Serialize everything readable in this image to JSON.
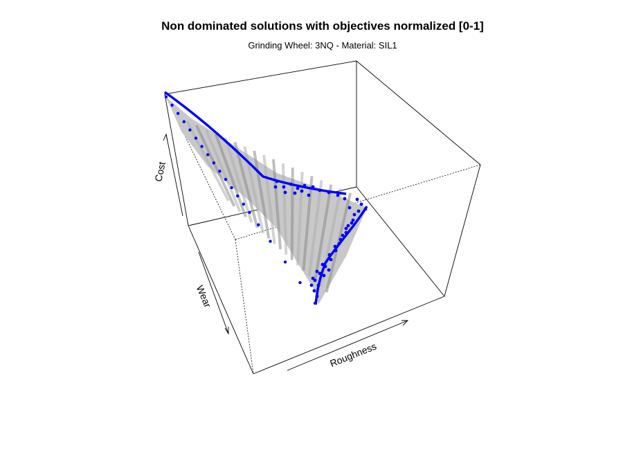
{
  "chart_data": {
    "type": "scatter",
    "title": "Non dominated solutions with objectives normalized [0-1]",
    "subtitle": "Grinding Wheel: 3NQ - Material: SIL1",
    "axes": {
      "x": "Roughness",
      "y": "Wear",
      "z": "Cost"
    },
    "xlim": [
      0,
      1
    ],
    "ylim": [
      0,
      1
    ],
    "zlim": [
      0,
      1
    ],
    "surface": {
      "fill": "#c8c8c8",
      "shade": "#8c8c8c"
    },
    "series": [
      {
        "color": "#0000ff",
        "points": [
          {
            "x": 0.0,
            "y": 1.0,
            "z": 1.0
          },
          {
            "x": 0.04,
            "y": 0.94,
            "z": 0.86
          },
          {
            "x": 0.08,
            "y": 0.88,
            "z": 0.74
          },
          {
            "x": 0.12,
            "y": 0.82,
            "z": 0.63
          },
          {
            "x": 0.16,
            "y": 0.76,
            "z": 0.54
          },
          {
            "x": 0.2,
            "y": 0.7,
            "z": 0.46
          },
          {
            "x": 0.24,
            "y": 0.64,
            "z": 0.39
          },
          {
            "x": 0.28,
            "y": 0.58,
            "z": 0.33
          },
          {
            "x": 0.32,
            "y": 0.52,
            "z": 0.28
          },
          {
            "x": 0.36,
            "y": 0.46,
            "z": 0.23
          },
          {
            "x": 0.4,
            "y": 0.4,
            "z": 0.19
          },
          {
            "x": 0.44,
            "y": 0.34,
            "z": 0.16
          },
          {
            "x": 0.48,
            "y": 0.28,
            "z": 0.13
          },
          {
            "x": 0.52,
            "y": 0.22,
            "z": 0.1
          },
          {
            "x": 0.56,
            "y": 0.16,
            "z": 0.08
          },
          {
            "x": 0.62,
            "y": 0.1,
            "z": 0.06
          },
          {
            "x": 0.7,
            "y": 0.06,
            "z": 0.04
          },
          {
            "x": 0.8,
            "y": 0.03,
            "z": 0.02
          },
          {
            "x": 0.9,
            "y": 0.01,
            "z": 0.01
          },
          {
            "x": 1.0,
            "y": 0.0,
            "z": 0.0
          }
        ]
      }
    ]
  }
}
